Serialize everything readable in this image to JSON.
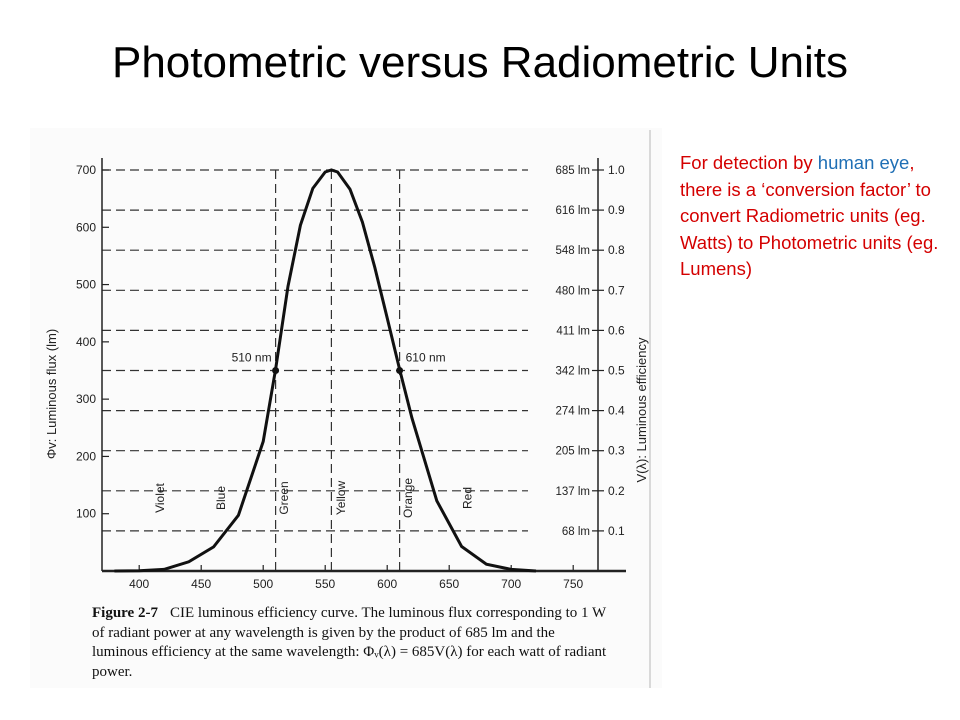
{
  "slide": {
    "title": "Photometric versus Radiometric Units",
    "note": {
      "part1": "For detection by ",
      "highlight": "human eye",
      "part2": ", there is a ‘conversion factor’ to convert Radiometric units (eg. Watts) to Photometric units (eg. Lumens)",
      "highlight_color": "#1f6fb5",
      "text_color": "#d40000"
    },
    "caption": {
      "figure_label": "Figure 2-7",
      "text": "CIE luminous efficiency curve. The luminous flux corresponding to 1 W of radiant power at any wavelength is given by the product of 685 lm and the luminous efficiency at the same wavelength: Φᵥ(λ) = 685V(λ) for each watt of radiant power."
    }
  },
  "chart_data": {
    "type": "line",
    "title": "",
    "xlabel": "",
    "ylabel_left": "Φv: Luminous flux (lm)",
    "ylabel_right": "V(λ): Luminous efficiency",
    "xlim": [
      370,
      770
    ],
    "ylim_left": [
      0,
      700
    ],
    "ylim_right": [
      0,
      1.0
    ],
    "x_ticks": [
      400,
      450,
      500,
      550,
      600,
      650,
      700,
      750
    ],
    "y_left_ticks": [
      100,
      200,
      300,
      400,
      500,
      600,
      700
    ],
    "y_right_ticks": [
      {
        "value": 0.1,
        "label": "0.1",
        "lm": "68 lm"
      },
      {
        "value": 0.2,
        "label": "0.2",
        "lm": "137 lm"
      },
      {
        "value": 0.3,
        "label": "0.3",
        "lm": "205 lm"
      },
      {
        "value": 0.4,
        "label": "0.4",
        "lm": "274 lm"
      },
      {
        "value": 0.5,
        "label": "0.5",
        "lm": "342 lm"
      },
      {
        "value": 0.6,
        "label": "0.6",
        "lm": "411 lm"
      },
      {
        "value": 0.7,
        "label": "0.7",
        "lm": "480 lm"
      },
      {
        "value": 0.8,
        "label": "0.8",
        "lm": "548 lm"
      },
      {
        "value": 0.9,
        "label": "0.9",
        "lm": "616 lm"
      },
      {
        "value": 1.0,
        "label": "1.0",
        "lm": "685 lm"
      }
    ],
    "grid": "dashed horizontal",
    "series": [
      {
        "x": [
          380,
          400,
          420,
          440,
          460,
          480,
          500,
          510,
          520,
          530,
          540,
          550,
          555,
          560,
          570,
          580,
          590,
          600,
          610,
          620,
          640,
          660,
          680,
          700
        ],
        "y": [
          0,
          0.0004,
          0.004,
          0.023,
          0.06,
          0.139,
          0.323,
          0.503,
          0.71,
          0.862,
          0.954,
          0.995,
          1.0,
          0.995,
          0.952,
          0.87,
          0.757,
          0.631,
          0.503,
          0.381,
          0.175,
          0.061,
          0.017,
          0.0041
        ]
      }
    ],
    "markers": [
      {
        "x": 510,
        "y": 0.5,
        "label": "510 nm"
      },
      {
        "x": 610,
        "y": 0.5,
        "label": "610 nm"
      }
    ],
    "vertical_lines": [
      510,
      555,
      610
    ],
    "color_bands": [
      {
        "label": "Violet",
        "x": 420
      },
      {
        "label": "Blue",
        "x": 469
      },
      {
        "label": "Green",
        "x": 520
      },
      {
        "label": "Yellow",
        "x": 566
      },
      {
        "label": "Orange",
        "x": 620
      },
      {
        "label": "Red",
        "x": 668
      }
    ]
  }
}
